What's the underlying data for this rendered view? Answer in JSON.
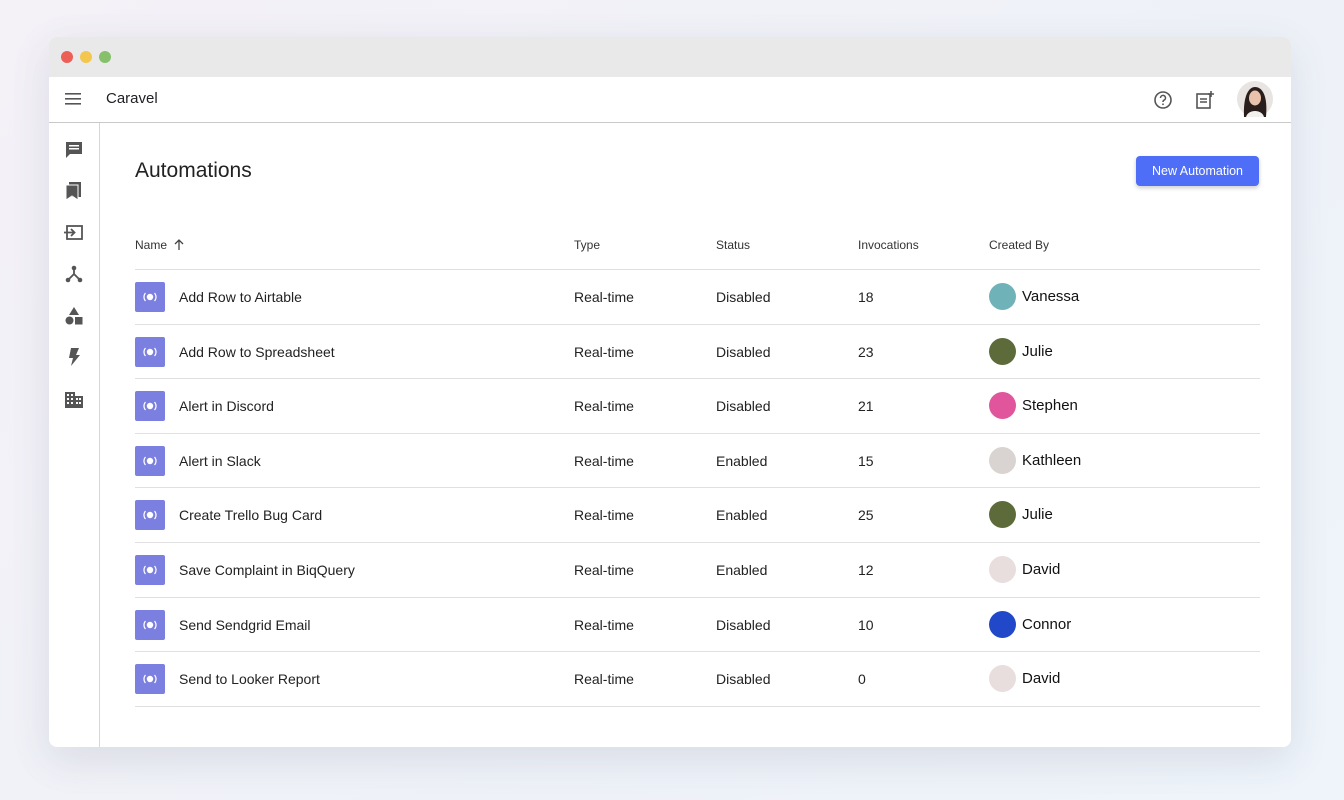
{
  "app_name": "Caravel",
  "page_title": "Automations",
  "new_button": "New Automation",
  "table": {
    "columns": [
      "Name",
      "Type",
      "Status",
      "Invocations",
      "Created By"
    ],
    "rows": [
      [
        "Add Row to Airtable",
        "Real-time",
        "Disabled",
        18,
        "Vanessa"
      ],
      [
        "Add Row to Spreadsheet",
        "Real-time",
        "Disabled",
        23,
        "Julie"
      ],
      [
        "Alert in Discord",
        "Real-time",
        "Disabled",
        21,
        "Stephen"
      ],
      [
        "Alert in Slack",
        "Real-time",
        "Enabled",
        15,
        "Kathleen"
      ],
      [
        "Create Trello Bug Card",
        "Real-time",
        "Enabled",
        25,
        "Julie"
      ],
      [
        "Save Complaint in BiqQuery",
        "Real-time",
        "Enabled",
        12,
        "David"
      ],
      [
        "Send Sendgrid Email",
        "Real-time",
        "Disabled",
        10,
        "Connor"
      ],
      [
        "Send to Looker Report",
        "Real-time",
        "Disabled",
        0,
        "David"
      ]
    ]
  }
}
